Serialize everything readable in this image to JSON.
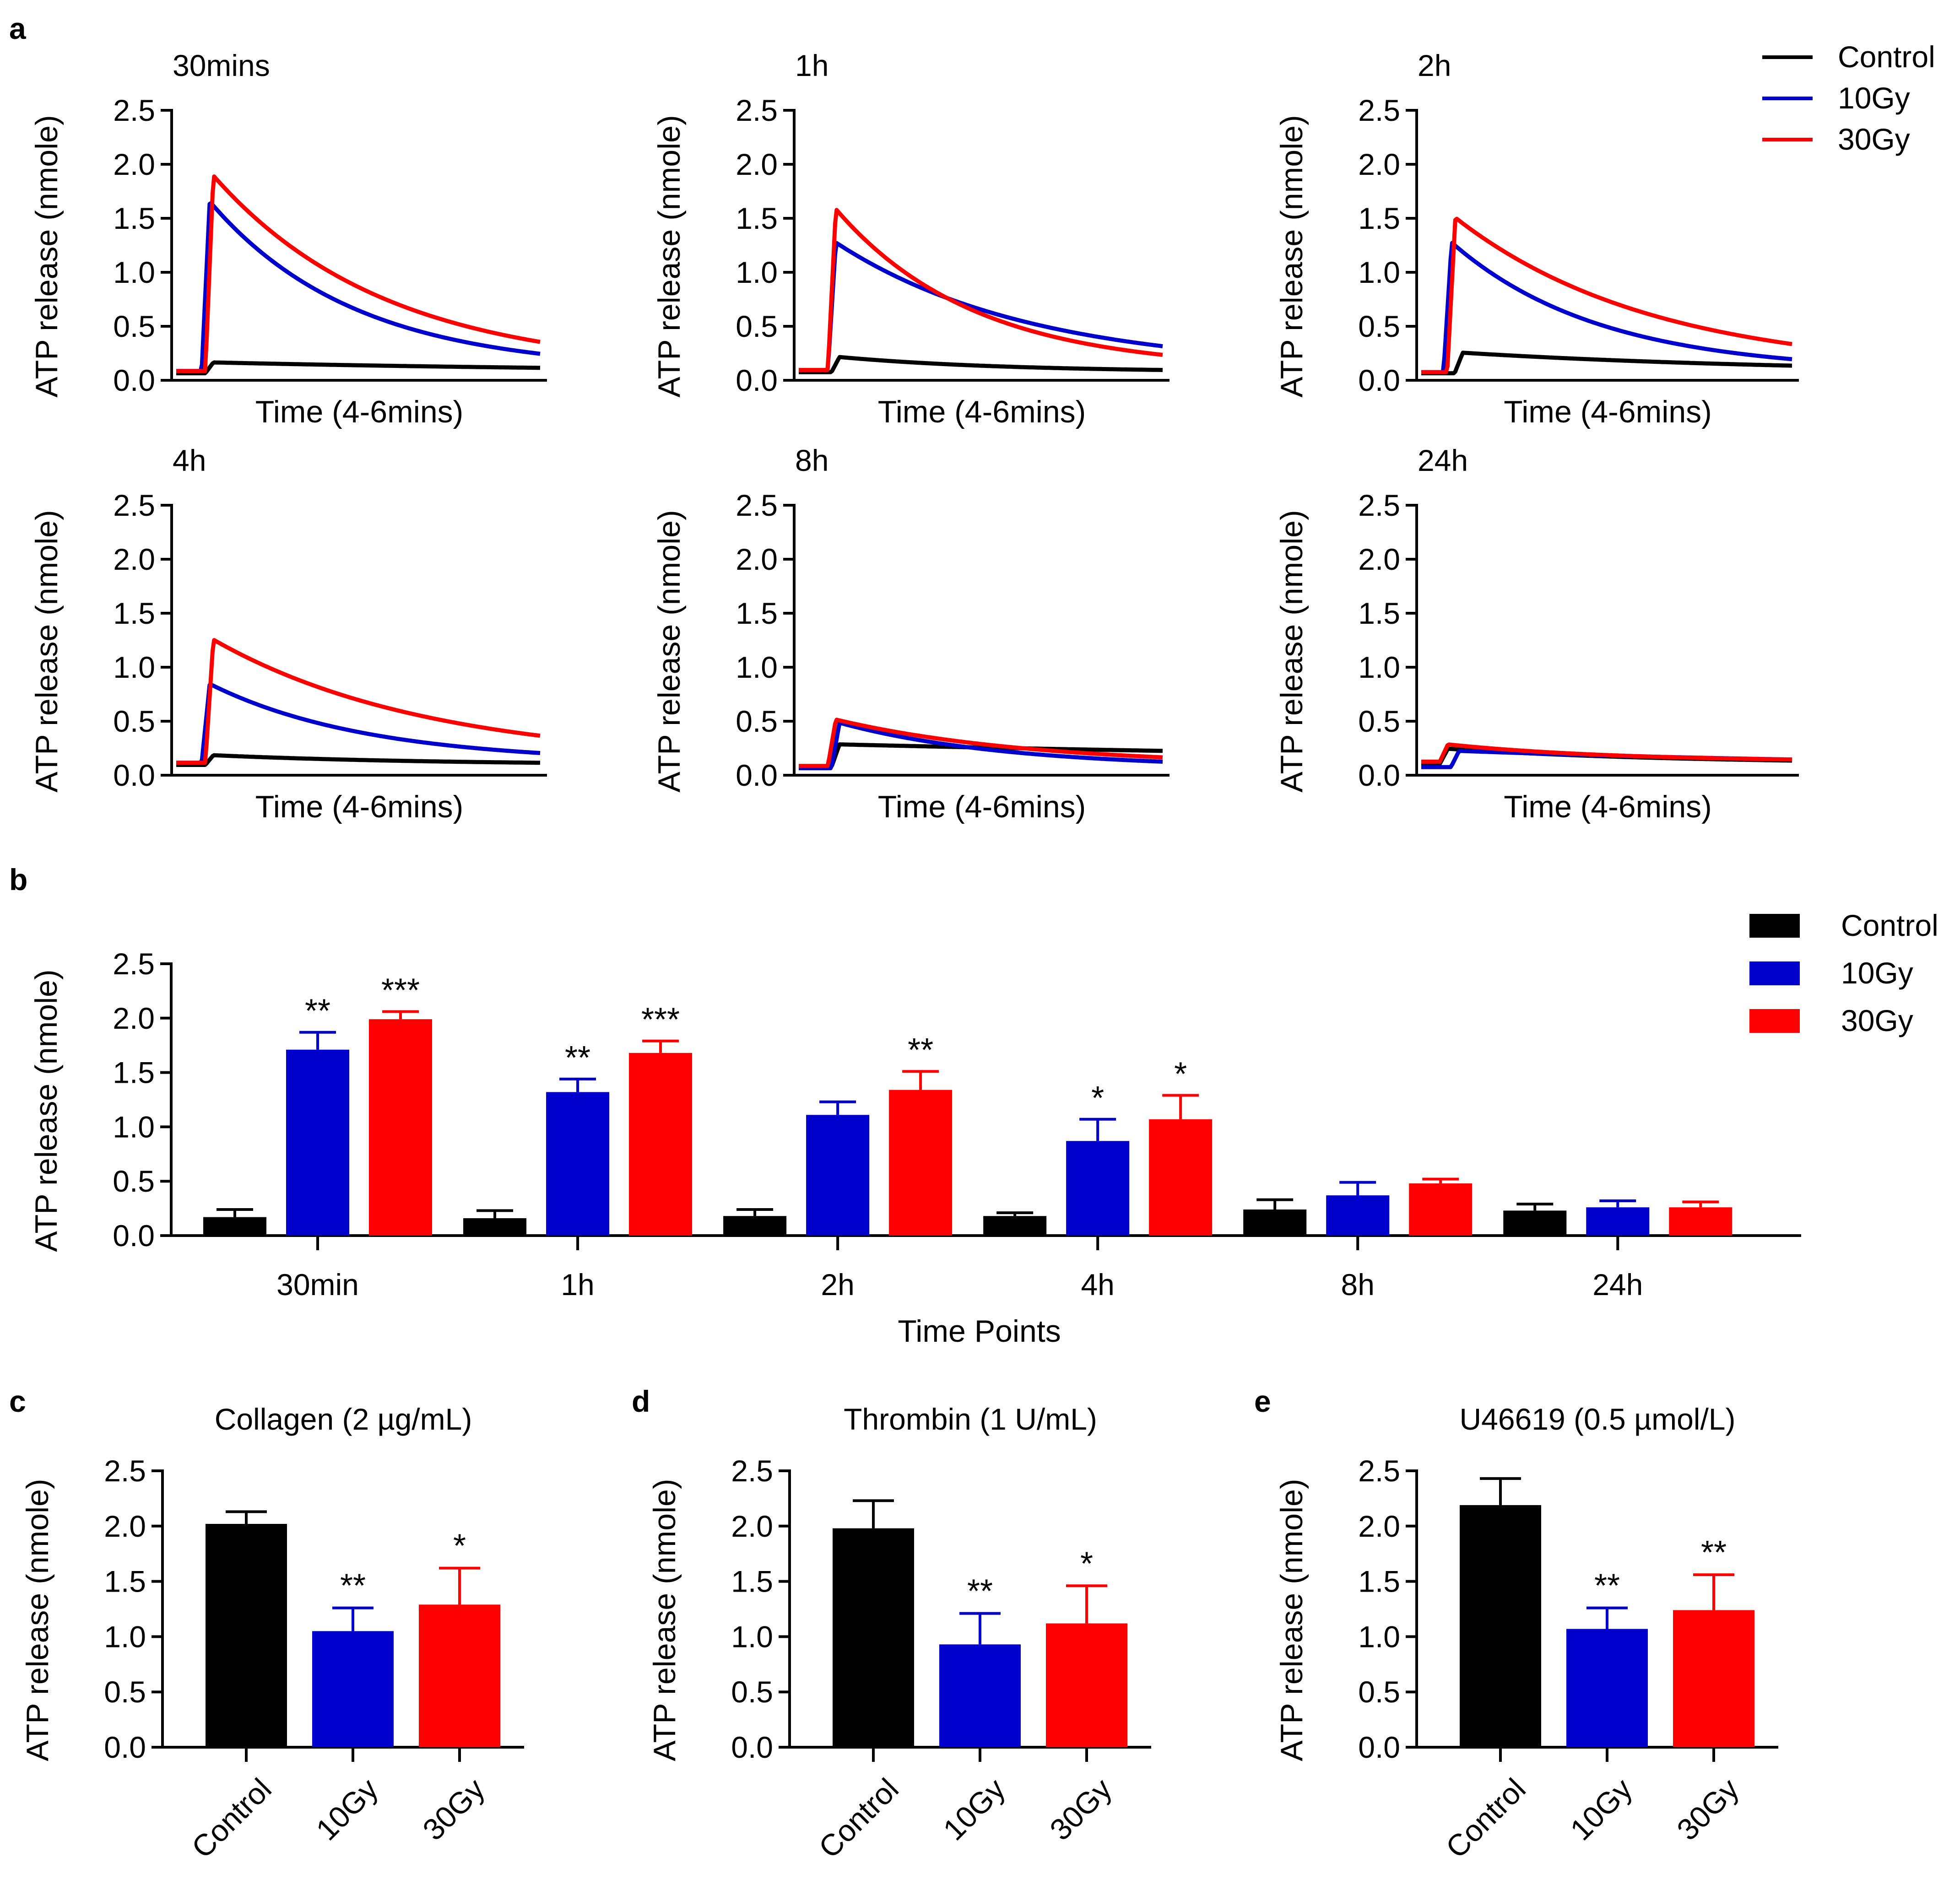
{
  "figure": {
    "panel_letters": [
      "a",
      "b",
      "c",
      "d",
      "e"
    ],
    "series_colors": {
      "Control": "#000000",
      "10Gy": "#0000CC",
      "30Gy": "#FF0000"
    }
  },
  "chart_data": [
    {
      "type": "line",
      "panel": "a",
      "ylabel": "ATP release (nmole)",
      "xlabel": "Time (4-6mins)",
      "ylim": [
        0,
        2.5
      ],
      "yticks": [
        "0.0",
        "0.5",
        "1.0",
        "1.5",
        "2.0",
        "2.5"
      ],
      "legend": {
        "position": "top-right",
        "entries": [
          "Control",
          "10Gy",
          "30Gy"
        ]
      },
      "subplots": [
        {
          "title": "30mins",
          "curves": {
            "Control": {
              "base": 0.04,
              "onset": 0.08,
              "peak": 0.14,
              "end": 0.09
            },
            "10Gy": {
              "base": 0.06,
              "onset": 0.07,
              "peak": 1.63,
              "end": 0.22
            },
            "30Gy": {
              "base": 0.06,
              "onset": 0.08,
              "peak": 1.87,
              "end": 0.33
            }
          }
        },
        {
          "title": "1h",
          "curves": {
            "Control": {
              "base": 0.05,
              "onset": 0.09,
              "peak": 0.19,
              "end": 0.07
            },
            "10Gy": {
              "base": 0.07,
              "onset": 0.08,
              "peak": 1.25,
              "end": 0.29
            },
            "30Gy": {
              "base": 0.07,
              "onset": 0.08,
              "peak": 1.56,
              "end": 0.21
            }
          }
        },
        {
          "title": "2h",
          "curves": {
            "Control": {
              "base": 0.04,
              "onset": 0.09,
              "peak": 0.23,
              "end": 0.11
            },
            "10Gy": {
              "base": 0.05,
              "onset": 0.06,
              "peak": 1.25,
              "end": 0.17
            },
            "30Gy": {
              "base": 0.05,
              "onset": 0.07,
              "peak": 1.48,
              "end": 0.31
            }
          }
        },
        {
          "title": "4h",
          "curves": {
            "Control": {
              "base": 0.07,
              "onset": 0.08,
              "peak": 0.16,
              "end": 0.09
            },
            "10Gy": {
              "base": 0.09,
              "onset": 0.07,
              "peak": 0.82,
              "end": 0.18
            },
            "30Gy": {
              "base": 0.09,
              "onset": 0.08,
              "peak": 1.23,
              "end": 0.34
            }
          }
        },
        {
          "title": "8h",
          "curves": {
            "Control": {
              "base": 0.05,
              "onset": 0.09,
              "peak": 0.26,
              "end": 0.2
            },
            "10Gy": {
              "base": 0.04,
              "onset": 0.09,
              "peak": 0.46,
              "end": 0.1
            },
            "30Gy": {
              "base": 0.06,
              "onset": 0.08,
              "peak": 0.49,
              "end": 0.14
            }
          }
        },
        {
          "title": "24h",
          "curves": {
            "Control": {
              "base": 0.08,
              "onset": 0.05,
              "peak": 0.22,
              "end": 0.11
            },
            "10Gy": {
              "base": 0.05,
              "onset": 0.08,
              "peak": 0.2,
              "end": 0.12
            },
            "30Gy": {
              "base": 0.1,
              "onset": 0.05,
              "peak": 0.26,
              "end": 0.12
            }
          }
        }
      ]
    },
    {
      "type": "bar",
      "panel": "b",
      "ylabel": "ATP release (nmole)",
      "xlabel": "Time Points",
      "ylim": [
        0,
        2.5
      ],
      "yticks": [
        "0.0",
        "0.5",
        "1.0",
        "1.5",
        "2.0",
        "2.5"
      ],
      "categories": [
        "30min",
        "1h",
        "2h",
        "4h",
        "8h",
        "24h"
      ],
      "legend": {
        "position": "top-right",
        "entries": [
          "Control",
          "10Gy",
          "30Gy"
        ]
      },
      "series": [
        {
          "name": "Control",
          "values": [
            0.17,
            0.16,
            0.18,
            0.18,
            0.24,
            0.23
          ],
          "errors": [
            0.07,
            0.07,
            0.06,
            0.03,
            0.09,
            0.06
          ],
          "sig": [
            "",
            "",
            "",
            "",
            "",
            ""
          ]
        },
        {
          "name": "10Gy",
          "values": [
            1.71,
            1.32,
            1.11,
            0.87,
            0.37,
            0.26
          ],
          "errors": [
            0.16,
            0.12,
            0.12,
            0.2,
            0.12,
            0.06
          ],
          "sig": [
            "**",
            "**",
            "",
            "*",
            "",
            ""
          ]
        },
        {
          "name": "30Gy",
          "values": [
            1.99,
            1.68,
            1.34,
            1.07,
            0.48,
            0.26
          ],
          "errors": [
            0.07,
            0.11,
            0.17,
            0.22,
            0.04,
            0.05
          ],
          "sig": [
            "***",
            "***",
            "**",
            "*",
            "",
            ""
          ]
        }
      ]
    },
    {
      "type": "bar",
      "panel": "c",
      "title": "Collagen (2 µg/mL)",
      "ylabel": "ATP release (nmole)",
      "ylim": [
        0,
        2.5
      ],
      "yticks": [
        "0.0",
        "0.5",
        "1.0",
        "1.5",
        "2.0",
        "2.5"
      ],
      "categories": [
        "Control",
        "10Gy",
        "30Gy"
      ],
      "values": [
        2.02,
        1.05,
        1.29
      ],
      "errors": [
        0.11,
        0.21,
        0.33
      ],
      "sig": [
        "",
        "**",
        "*"
      ]
    },
    {
      "type": "bar",
      "panel": "d",
      "title": "Thrombin (1 U/mL)",
      "ylabel": "ATP release (nmole)",
      "ylim": [
        0,
        2.5
      ],
      "yticks": [
        "0.0",
        "0.5",
        "1.0",
        "1.5",
        "2.0",
        "2.5"
      ],
      "categories": [
        "Control",
        "10Gy",
        "30Gy"
      ],
      "values": [
        1.98,
        0.93,
        1.12
      ],
      "errors": [
        0.25,
        0.28,
        0.34
      ],
      "sig": [
        "",
        "**",
        "*"
      ]
    },
    {
      "type": "bar",
      "panel": "e",
      "title": "U46619 (0.5 µmol/L)",
      "ylabel": "ATP release (nmole)",
      "ylim": [
        0,
        2.5
      ],
      "yticks": [
        "0.0",
        "0.5",
        "1.0",
        "1.5",
        "2.0",
        "2.5"
      ],
      "categories": [
        "Control",
        "10Gy",
        "30Gy"
      ],
      "values": [
        2.19,
        1.07,
        1.24
      ],
      "errors": [
        0.24,
        0.19,
        0.32
      ],
      "sig": [
        "",
        "**",
        "**"
      ]
    }
  ]
}
